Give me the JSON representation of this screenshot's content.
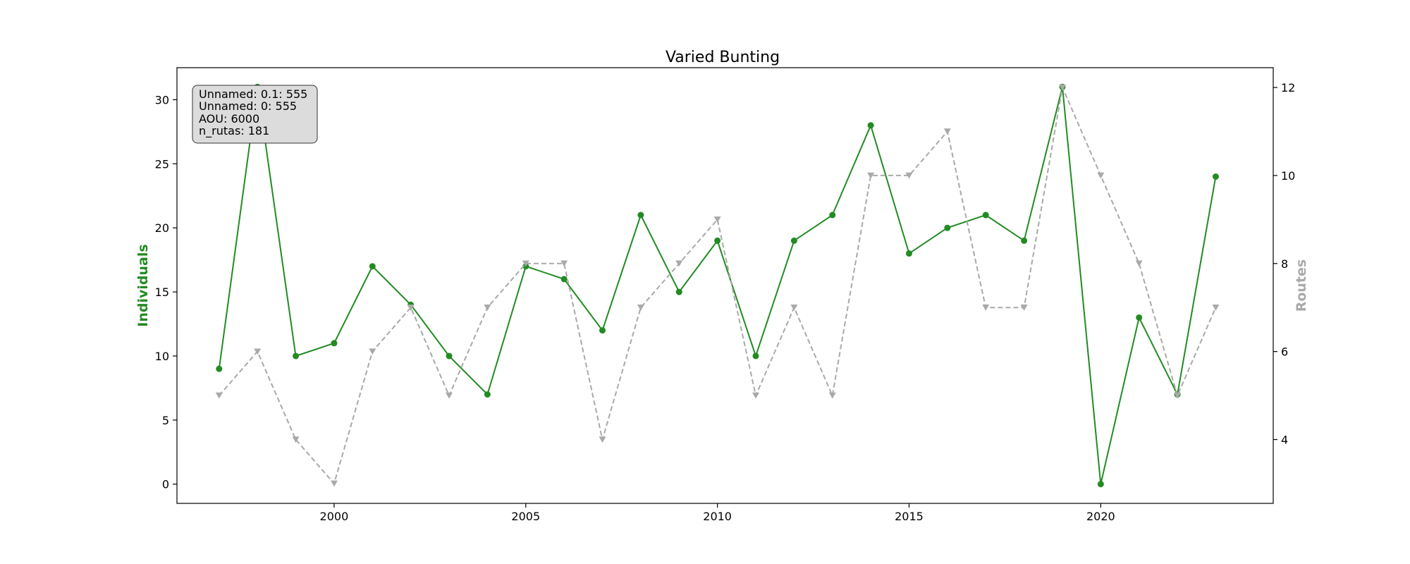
{
  "chart_data": {
    "type": "line",
    "title": "Varied Bunting",
    "xlabel": "",
    "ylabel_left": "Individuals",
    "ylabel_right": "Routes",
    "x": [
      1997,
      1998,
      1999,
      2000,
      2001,
      2002,
      2003,
      2004,
      2005,
      2006,
      2007,
      2008,
      2009,
      2010,
      2011,
      2012,
      2013,
      2014,
      2015,
      2016,
      2017,
      2018,
      2019,
      2020,
      2021,
      2022,
      2023
    ],
    "xlim": [
      1995.9,
      2024.5
    ],
    "xticks": [
      2000,
      2005,
      2010,
      2015,
      2020
    ],
    "ylim_left": [
      -1.5,
      32.5
    ],
    "yticks_left": [
      0,
      5,
      10,
      15,
      20,
      25,
      30
    ],
    "ylim_right": [
      2.55,
      12.45
    ],
    "yticks_right": [
      4,
      6,
      8,
      10,
      12
    ],
    "grid": false,
    "series": [
      {
        "axis": "left",
        "color": "#228b22",
        "linestyle": "solid",
        "marker": "circle",
        "values": [
          9,
          31,
          10,
          11,
          17,
          14,
          10,
          7,
          17,
          16,
          12,
          21,
          15,
          19,
          10,
          19,
          21,
          28,
          18,
          20,
          21,
          19,
          31,
          0,
          13,
          7,
          24
        ]
      },
      {
        "axis": "right",
        "color": "#a9a9a9",
        "linestyle": "dashed",
        "marker": "triangle-down",
        "values": [
          5,
          6,
          4,
          3,
          6,
          7,
          5,
          7,
          8,
          8,
          4,
          7,
          8,
          9,
          5,
          7,
          5,
          10,
          10,
          11,
          7,
          7,
          12,
          10,
          8,
          5,
          7
        ]
      }
    ],
    "info_box": {
      "lines": [
        "Unnamed: 0.1: 555",
        "Unnamed: 0: 555",
        "AOU: 6000",
        "n_rutas: 181"
      ],
      "placement": "top-left"
    },
    "colors": {
      "individuals": "#228b22",
      "routes": "#a9a9a9",
      "info_box_fill": "#dcdcdc"
    }
  }
}
